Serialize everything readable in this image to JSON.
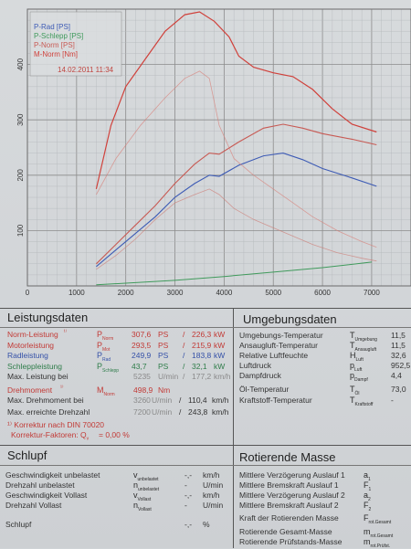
{
  "chart_data": {
    "type": "line",
    "legend": [
      "P-Rad [PS]",
      "P-Schlepp [PS]",
      "P-Norm [PS]",
      "M-Norm [Nm]"
    ],
    "legend_date": "14.02.2011 11:34",
    "legend_placement": "top-left",
    "colors": {
      "P-Rad [PS]": "#3d5bb5",
      "P-Schlepp [PS]": "#3f9a5b",
      "P-Norm [PS]": "#c85a54",
      "M-Norm [Nm]": "#d0413b"
    },
    "xlim": [
      0,
      7000
    ],
    "ylim": [
      0,
      500
    ],
    "x_ticks": [
      0,
      1000,
      2000,
      3000,
      4000,
      5000,
      6000,
      7000
    ],
    "y_ticks": [
      100,
      200,
      300,
      400
    ],
    "grid": true,
    "series": [
      {
        "name": "P-Rad [PS]",
        "x": [
          1400,
          1800,
          2200,
          2600,
          3000,
          3400,
          3700,
          3900,
          4300,
          4800,
          5200,
          5600,
          6000,
          6600,
          7100
        ],
        "y": [
          35,
          65,
          95,
          125,
          160,
          185,
          200,
          198,
          218,
          235,
          240,
          228,
          212,
          195,
          180
        ]
      },
      {
        "name": "P-Schlepp [PS]",
        "x": [
          1400,
          2000,
          3000,
          4000,
          5000,
          6000,
          7000
        ],
        "y": [
          2,
          5,
          10,
          17,
          25,
          33,
          43
        ]
      },
      {
        "name": "P-Norm [PS]",
        "x": [
          1400,
          1800,
          2200,
          2600,
          3000,
          3400,
          3700,
          3900,
          4300,
          4800,
          5200,
          5600,
          6000,
          6600,
          7100
        ],
        "y": [
          40,
          75,
          110,
          145,
          185,
          220,
          240,
          238,
          260,
          285,
          292,
          285,
          275,
          265,
          255
        ]
      },
      {
        "name": "M-Norm [Nm]",
        "x": [
          1400,
          1700,
          2000,
          2400,
          2800,
          3200,
          3500,
          3800,
          4100,
          4300,
          4600,
          5000,
          5400,
          5800,
          6200,
          6600,
          7100
        ],
        "y": [
          175,
          290,
          360,
          410,
          460,
          490,
          495,
          478,
          450,
          415,
          395,
          385,
          378,
          355,
          320,
          292,
          278
        ]
      },
      {
        "name": "",
        "x": [
          1400,
          1800,
          2300,
          2800,
          3200,
          3500,
          3700,
          3900,
          4200,
          4600,
          5000,
          5400,
          5800,
          6300,
          6800,
          7100
        ],
        "y": [
          165,
          230,
          290,
          340,
          375,
          388,
          375,
          290,
          230,
          200,
          175,
          150,
          125,
          100,
          80,
          70
        ]
      },
      {
        "name": "",
        "x": [
          1400,
          1800,
          2200,
          2600,
          3000,
          3400,
          3700,
          3900,
          4200,
          4600,
          5000,
          5400,
          5800,
          6300,
          6800,
          7100
        ],
        "y": [
          30,
          55,
          85,
          120,
          150,
          165,
          175,
          165,
          140,
          120,
          105,
          90,
          75,
          60,
          50,
          45
        ]
      }
    ]
  },
  "leistung": {
    "title": "Leistungsdaten",
    "rows": [
      {
        "label": "Norm-Leistung",
        "mark": "¹⁾",
        "sym": "P",
        "sub": "Norm",
        "v1": "307,6",
        "u1": "PS",
        "sep": "/",
        "v2": "226,3",
        "u2": "kW"
      },
      {
        "label": "Motorleistung",
        "mark": "",
        "sym": "P",
        "sub": "Mot",
        "v1": "293,5",
        "u1": "PS",
        "sep": "/",
        "v2": "215,9",
        "u2": "kW"
      },
      {
        "label": "Radleistung",
        "mark": "",
        "sym": "P",
        "sub": "Rad",
        "v1": "249,9",
        "u1": "PS",
        "sep": "/",
        "v2": "183,8",
        "u2": "kW"
      },
      {
        "label": "Schleppleistung",
        "mark": "",
        "sym": "P",
        "sub": "Schlepp",
        "v1": "43,7",
        "u1": "PS",
        "sep": "/",
        "v2": "32,1",
        "u2": "kW"
      },
      {
        "label": "Max. Leistung bei",
        "mark": "",
        "sym": "",
        "sub": "",
        "v1": "5235",
        "u1": "U/min",
        "sep": "/",
        "v2": "177,2",
        "u2": "km/h"
      }
    ],
    "drehmoment": {
      "label": "Drehmoment",
      "mark": "¹⁾",
      "sym": "M",
      "sub": "Norm",
      "v1": "498,9",
      "u1": "Nm"
    },
    "max_drehmoment": {
      "label": "Max. Drehmoment bei",
      "v1": "3260",
      "u1": "U/min",
      "sep": "/",
      "v2": "110,4",
      "u2": "km/h"
    },
    "max_drehzahl": {
      "label": "Max. erreichte Drehzahl",
      "v1": "7200",
      "u1": "U/min",
      "sep": "/",
      "v2": "243,8",
      "u2": "km/h"
    },
    "korrektur": "¹⁾ Korrektur nach DIN 70020",
    "korrektur_faktor": "Korrektur-Faktoren: Q",
    "korrektur_sub": "v",
    "korrektur_val": "=  0,00 %"
  },
  "umgebung": {
    "title": "Umgebungsdaten",
    "rows": [
      {
        "label": "Umgebungs-Temperatur",
        "sym": "T",
        "sub": "Umgebung",
        "val": "11,5"
      },
      {
        "label": "Ansaugluft-Temperatur",
        "sym": "T",
        "sub": "Ansaugluft",
        "val": "11,5"
      },
      {
        "label": "Relative Luftfeuchte",
        "sym": "H",
        "sub": "Luft",
        "val": "32,6"
      },
      {
        "label": "Luftdruck",
        "sym": "p",
        "sub": "Luft",
        "val": "952,5"
      },
      {
        "label": "Dampfdruck",
        "sym": "p",
        "sub": "Dampf",
        "val": "4,4"
      },
      {
        "label": "Öl-Temperatur",
        "sym": "T",
        "sub": "Öl",
        "val": "73,0"
      },
      {
        "label": "Kraftstoff-Temperatur",
        "sym": "T",
        "sub": "Kraftstoff",
        "val": "-"
      }
    ]
  },
  "schlupf": {
    "title": "Schlupf",
    "rows": [
      {
        "label": "Geschwindigkeit unbelastet",
        "sym": "v",
        "sub": "unbelastet",
        "val": "-,-",
        "unit": "km/h"
      },
      {
        "label": "Drehzahl unbelastet",
        "sym": "n",
        "sub": "unbelastet",
        "val": "-",
        "unit": "U/min"
      },
      {
        "label": "Geschwindigkeit Vollast",
        "sym": "v",
        "sub": "Vollast",
        "val": "-,-",
        "unit": "km/h"
      },
      {
        "label": "Drehzahl Vollast",
        "sym": "n",
        "sub": "Vollast",
        "val": "-",
        "unit": "U/min"
      },
      {
        "label": "Schlupf",
        "sym": "",
        "sub": "",
        "val": "-,-",
        "unit": "%"
      }
    ]
  },
  "rotierende": {
    "title": "Rotierende Masse",
    "rows": [
      {
        "label": "Mittlere Verzögerung Auslauf 1",
        "sym": "a",
        "sub": "1"
      },
      {
        "label": "Mittlere Bremskraft Auslauf 1",
        "sym": "F",
        "sub": "1"
      },
      {
        "label": "Mittlere Verzögerung Auslauf 2",
        "sym": "a",
        "sub": "2"
      },
      {
        "label": "Mittlere Bremskraft Auslauf 2",
        "sym": "F",
        "sub": "2"
      },
      {
        "label": "Kraft der Rotierenden Masse",
        "sym": "F",
        "sub": "rot.Gesamt"
      },
      {
        "label": "Rotierende Gesamt-Masse",
        "sym": "m",
        "sub": "rot.Gesamt"
      },
      {
        "label": "Rotierende Prüfstands-Masse",
        "sym": "m",
        "sub": "rot.Prüfst."
      }
    ]
  }
}
